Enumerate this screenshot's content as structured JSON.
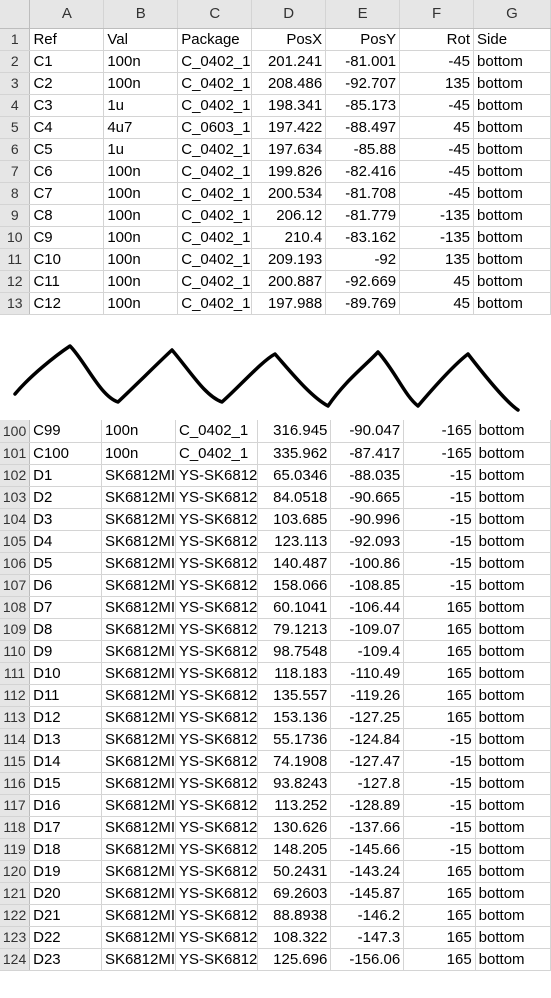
{
  "columns": [
    "A",
    "B",
    "C",
    "D",
    "E",
    "F",
    "G"
  ],
  "top_rows": [
    {
      "n": "1",
      "cells": [
        "Ref",
        "Val",
        "Package",
        "PosX",
        "PosY",
        "Rot",
        "Side"
      ]
    },
    {
      "n": "2",
      "cells": [
        "C1",
        "100n",
        "C_0402_1",
        "201.241",
        "-81.001",
        "-45",
        "bottom"
      ]
    },
    {
      "n": "3",
      "cells": [
        "C2",
        "100n",
        "C_0402_1",
        "208.486",
        "-92.707",
        "135",
        "bottom"
      ]
    },
    {
      "n": "4",
      "cells": [
        "C3",
        "1u",
        "C_0402_1",
        "198.341",
        "-85.173",
        "-45",
        "bottom"
      ]
    },
    {
      "n": "5",
      "cells": [
        "C4",
        "4u7",
        "C_0603_1",
        "197.422",
        "-88.497",
        "45",
        "bottom"
      ]
    },
    {
      "n": "6",
      "cells": [
        "C5",
        "1u",
        "C_0402_1",
        "197.634",
        "-85.88",
        "-45",
        "bottom"
      ]
    },
    {
      "n": "7",
      "cells": [
        "C6",
        "100n",
        "C_0402_1",
        "199.826",
        "-82.416",
        "-45",
        "bottom"
      ]
    },
    {
      "n": "8",
      "cells": [
        "C7",
        "100n",
        "C_0402_1",
        "200.534",
        "-81.708",
        "-45",
        "bottom"
      ]
    },
    {
      "n": "9",
      "cells": [
        "C8",
        "100n",
        "C_0402_1",
        "206.12",
        "-81.779",
        "-135",
        "bottom"
      ]
    },
    {
      "n": "10",
      "cells": [
        "C9",
        "100n",
        "C_0402_1",
        "210.4",
        "-83.162",
        "-135",
        "bottom"
      ]
    },
    {
      "n": "11",
      "cells": [
        "C10",
        "100n",
        "C_0402_1",
        "209.193",
        "-92",
        "135",
        "bottom"
      ]
    },
    {
      "n": "12",
      "cells": [
        "C11",
        "100n",
        "C_0402_1",
        "200.887",
        "-92.669",
        "45",
        "bottom"
      ]
    },
    {
      "n": "13",
      "cells": [
        "C12",
        "100n",
        "C_0402_1",
        "197.988",
        "-89.769",
        "45",
        "bottom"
      ]
    }
  ],
  "bottom_rows": [
    {
      "n": "100",
      "cells": [
        "C99",
        "100n",
        "C_0402_1",
        "316.945",
        "-90.047",
        "-165",
        "bottom"
      ]
    },
    {
      "n": "101",
      "cells": [
        "C100",
        "100n",
        "C_0402_1",
        "335.962",
        "-87.417",
        "-165",
        "bottom"
      ]
    },
    {
      "n": "102",
      "cells": [
        "D1",
        "SK6812MI",
        "YS-SK6812",
        "65.0346",
        "-88.035",
        "-15",
        "bottom"
      ]
    },
    {
      "n": "103",
      "cells": [
        "D2",
        "SK6812MI",
        "YS-SK6812",
        "84.0518",
        "-90.665",
        "-15",
        "bottom"
      ]
    },
    {
      "n": "104",
      "cells": [
        "D3",
        "SK6812MI",
        "YS-SK6812",
        "103.685",
        "-90.996",
        "-15",
        "bottom"
      ]
    },
    {
      "n": "105",
      "cells": [
        "D4",
        "SK6812MI",
        "YS-SK6812",
        "123.113",
        "-92.093",
        "-15",
        "bottom"
      ]
    },
    {
      "n": "106",
      "cells": [
        "D5",
        "SK6812MI",
        "YS-SK6812",
        "140.487",
        "-100.86",
        "-15",
        "bottom"
      ]
    },
    {
      "n": "107",
      "cells": [
        "D6",
        "SK6812MI",
        "YS-SK6812",
        "158.066",
        "-108.85",
        "-15",
        "bottom"
      ]
    },
    {
      "n": "108",
      "cells": [
        "D7",
        "SK6812MI",
        "YS-SK6812",
        "60.1041",
        "-106.44",
        "165",
        "bottom"
      ]
    },
    {
      "n": "109",
      "cells": [
        "D8",
        "SK6812MI",
        "YS-SK6812",
        "79.1213",
        "-109.07",
        "165",
        "bottom"
      ]
    },
    {
      "n": "110",
      "cells": [
        "D9",
        "SK6812MI",
        "YS-SK6812",
        "98.7548",
        "-109.4",
        "165",
        "bottom"
      ]
    },
    {
      "n": "111",
      "cells": [
        "D10",
        "SK6812MI",
        "YS-SK6812",
        "118.183",
        "-110.49",
        "165",
        "bottom"
      ]
    },
    {
      "n": "112",
      "cells": [
        "D11",
        "SK6812MI",
        "YS-SK6812",
        "135.557",
        "-119.26",
        "165",
        "bottom"
      ]
    },
    {
      "n": "113",
      "cells": [
        "D12",
        "SK6812MI",
        "YS-SK6812",
        "153.136",
        "-127.25",
        "165",
        "bottom"
      ]
    },
    {
      "n": "114",
      "cells": [
        "D13",
        "SK6812MI",
        "YS-SK6812",
        "55.1736",
        "-124.84",
        "-15",
        "bottom"
      ]
    },
    {
      "n": "115",
      "cells": [
        "D14",
        "SK6812MI",
        "YS-SK6812",
        "74.1908",
        "-127.47",
        "-15",
        "bottom"
      ]
    },
    {
      "n": "116",
      "cells": [
        "D15",
        "SK6812MI",
        "YS-SK6812",
        "93.8243",
        "-127.8",
        "-15",
        "bottom"
      ]
    },
    {
      "n": "117",
      "cells": [
        "D16",
        "SK6812MI",
        "YS-SK6812",
        "113.252",
        "-128.89",
        "-15",
        "bottom"
      ]
    },
    {
      "n": "118",
      "cells": [
        "D17",
        "SK6812MI",
        "YS-SK6812",
        "130.626",
        "-137.66",
        "-15",
        "bottom"
      ]
    },
    {
      "n": "119",
      "cells": [
        "D18",
        "SK6812MI",
        "YS-SK6812",
        "148.205",
        "-145.66",
        "-15",
        "bottom"
      ]
    },
    {
      "n": "120",
      "cells": [
        "D19",
        "SK6812MI",
        "YS-SK6812",
        "50.2431",
        "-143.24",
        "165",
        "bottom"
      ]
    },
    {
      "n": "121",
      "cells": [
        "D20",
        "SK6812MI",
        "YS-SK6812",
        "69.2603",
        "-145.87",
        "165",
        "bottom"
      ]
    },
    {
      "n": "122",
      "cells": [
        "D21",
        "SK6812MI",
        "YS-SK6812",
        "88.8938",
        "-146.2",
        "165",
        "bottom"
      ]
    },
    {
      "n": "123",
      "cells": [
        "D22",
        "SK6812MI",
        "YS-SK6812",
        "108.322",
        "-147.3",
        "165",
        "bottom"
      ]
    },
    {
      "n": "124",
      "cells": [
        "D23",
        "SK6812MI",
        "YS-SK6812",
        "125.696",
        "-156.06",
        "165",
        "bottom"
      ]
    }
  ],
  "colors": {
    "header_bg": "#e6e6e6",
    "grid_line": "#d4d4d4",
    "text": "#000000"
  }
}
